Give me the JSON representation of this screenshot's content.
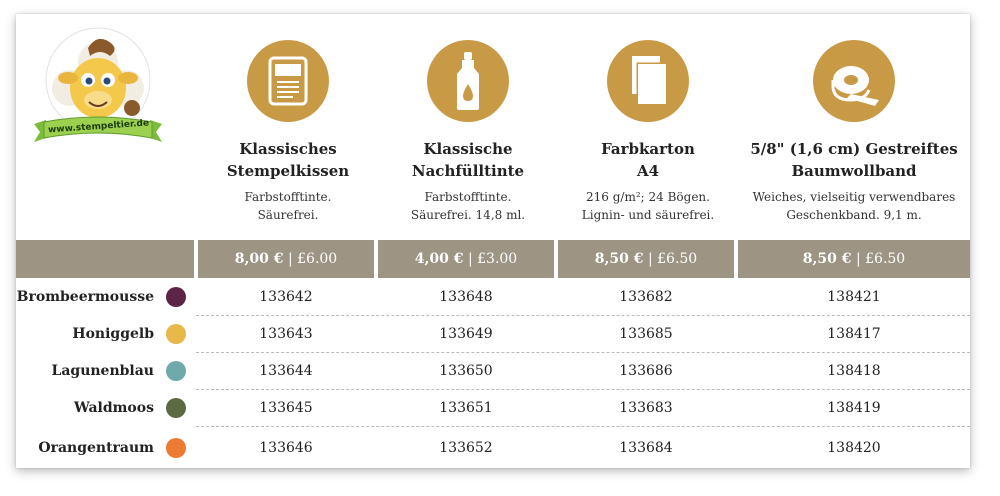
{
  "logo": {
    "url_text": "www.stempeltier.de"
  },
  "products": [
    {
      "icon": "stamp-pad-icon",
      "name_line1": "Klassisches",
      "name_line2": "Stempelkissen",
      "desc_line1": "Farbstofftinte.",
      "desc_line2": "Säurefrei.",
      "price_eur": "8,00 €",
      "price_gbp": "£6.00"
    },
    {
      "icon": "ink-refill-bottle-icon",
      "name_line1": "Klassische",
      "name_line2": "Nachfülltinte",
      "desc_line1": "Farbstofftinte.",
      "desc_line2": "Säurefrei. 14,8 ml.",
      "price_eur": "4,00 €",
      "price_gbp": "£3.00"
    },
    {
      "icon": "cardstock-sheets-icon",
      "name_line1": "Farbkarton",
      "name_line2": "A4",
      "desc_line1": "216 g/m²; 24 Bögen.",
      "desc_line2": "Lignin- und säurefrei.",
      "price_eur": "8,50 €",
      "price_gbp": "£6.50"
    },
    {
      "icon": "ribbon-roll-icon",
      "name_line1": "5/8\" (1,6 cm) Gestreiftes",
      "name_line2": "Baumwollband",
      "desc_line1": "Weiches, vielseitig verwendbares",
      "desc_line2": "Geschenkband. 9,1 m.",
      "price_eur": "8,50 €",
      "price_gbp": "£6.50"
    }
  ],
  "price_separator": "|",
  "colors": {
    "accent_gold": "#c99a45",
    "price_bar": "#9d9484"
  },
  "rows": [
    {
      "name": "Brombeermousse",
      "color": "#5c2447",
      "numbers": [
        "133642",
        "133648",
        "133682",
        "138421"
      ]
    },
    {
      "name": "Honiggelb",
      "color": "#e8b84a",
      "numbers": [
        "133643",
        "133649",
        "133685",
        "138417"
      ]
    },
    {
      "name": "Lagunenblau",
      "color": "#6fa9aa",
      "numbers": [
        "133644",
        "133650",
        "133686",
        "138418"
      ]
    },
    {
      "name": "Waldmoos",
      "color": "#5e6a42",
      "numbers": [
        "133645",
        "133651",
        "133683",
        "138419"
      ]
    },
    {
      "name": "Orangentraum",
      "color": "#ec7a33",
      "numbers": [
        "133646",
        "133652",
        "133684",
        "138420"
      ]
    }
  ]
}
